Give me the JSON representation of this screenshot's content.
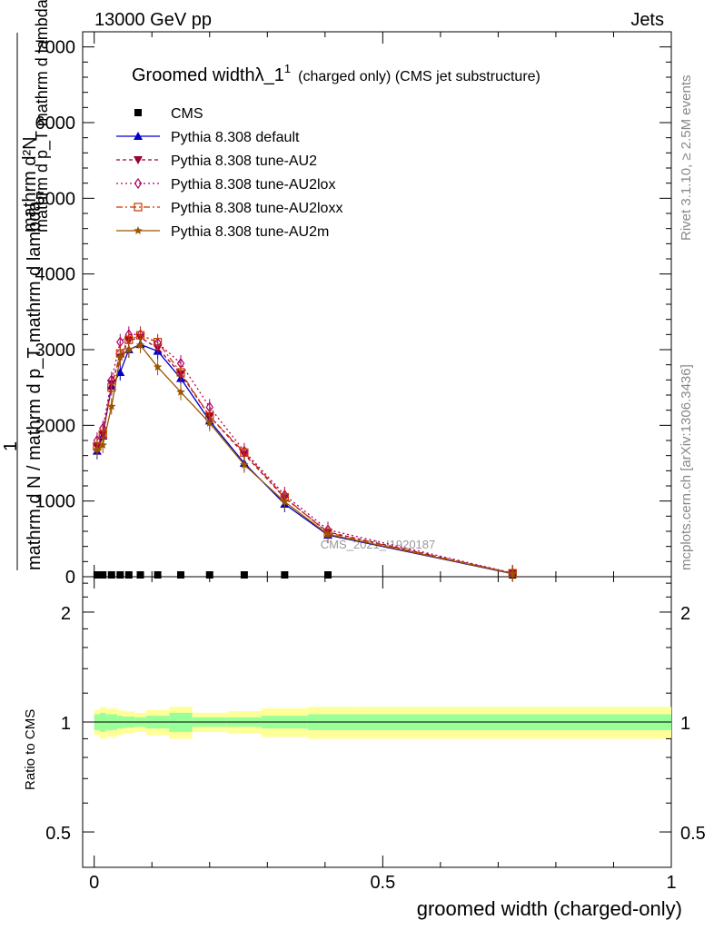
{
  "header": {
    "left": "13000 GeV pp",
    "right": "Jets",
    "side_top": "Rivet 3.1.10, ≥ 2.5M events",
    "side_bottom": "mcplots.cern.ch [arXiv:1306.3436]"
  },
  "title": {
    "main": "Groomed widthλ_1",
    "sup": "1",
    "sub": "(charged only) (CMS jet substructure)"
  },
  "watermark": "CMS_2021_I1920187",
  "axes": {
    "main_ylabel_num": "mathrm d²N",
    "main_ylabel_den": "mathrm d p_T mathrm d lambda",
    "main_ylabel_frac_den": "mathrm d N / mathrm d p_T mathrm d lambda",
    "main_ylabel_one": "1",
    "ratio_ylabel": "Ratio to CMS",
    "xlabel": "groomed width (charged-only)"
  },
  "chart_data": {
    "type": "line",
    "xlim": [
      -0.02,
      1.0
    ],
    "main_ylim": [
      0,
      7200
    ],
    "main_yticks": [
      {
        "v": 0,
        "label": "0"
      },
      {
        "v": 1000,
        "label": "1000"
      },
      {
        "v": 2000,
        "label": "2000"
      },
      {
        "v": 3000,
        "label": "3000"
      },
      {
        "v": 4000,
        "label": "4000"
      },
      {
        "v": 5000,
        "label": "5000"
      },
      {
        "v": 6000,
        "label": "6000"
      },
      {
        "v": 7000,
        "label": "7000"
      }
    ],
    "xticks": [
      {
        "v": 0,
        "label": "0"
      },
      {
        "v": 0.5,
        "label": "0.5"
      },
      {
        "v": 1,
        "label": "1"
      }
    ],
    "ratio_ylim": [
      0.4,
      2.5
    ],
    "ratio_yticks": [
      {
        "v": 0.5,
        "label": "0.5"
      },
      {
        "v": 1,
        "label": "1"
      },
      {
        "v": 2,
        "label": "2"
      }
    ],
    "x": [
      0.005,
      0.015,
      0.03,
      0.045,
      0.06,
      0.08,
      0.11,
      0.15,
      0.2,
      0.26,
      0.33,
      0.405,
      0.725
    ],
    "bin_edges": [
      0.0,
      0.01,
      0.02,
      0.04,
      0.05,
      0.07,
      0.09,
      0.13,
      0.17,
      0.23,
      0.29,
      0.37,
      0.45,
      1.0
    ],
    "cms": [
      0,
      0,
      0,
      0,
      0,
      0,
      0,
      0,
      0,
      0,
      0,
      0,
      0
    ],
    "band_stat": [
      0.05,
      0.06,
      0.05,
      0.04,
      0.035,
      0.03,
      0.04,
      0.06,
      0.03,
      0.03,
      0.04,
      0.05,
      0.05
    ],
    "band_total": [
      0.08,
      0.1,
      0.09,
      0.08,
      0.07,
      0.06,
      0.08,
      0.1,
      0.06,
      0.07,
      0.09,
      0.1,
      0.1
    ],
    "series": [
      {
        "name": "CMS",
        "color": "#000000",
        "marker": "square",
        "dash": "none"
      },
      {
        "name": "Pythia 8.308 default",
        "color": "#0000cc",
        "marker": "triangle-up",
        "dash": "none",
        "values": [
          1660,
          1860,
          2520,
          2700,
          3000,
          3070,
          2980,
          2620,
          2060,
          1500,
          960,
          550,
          40
        ]
      },
      {
        "name": "Pythia 8.308 tune-AU2",
        "color": "#990033",
        "marker": "triangle-down",
        "dash": "4,3",
        "values": [
          1720,
          1880,
          2550,
          2900,
          3120,
          3160,
          3020,
          2680,
          2120,
          1620,
          1040,
          590,
          45
        ]
      },
      {
        "name": "Pythia 8.308 tune-AU2lox",
        "color": "#aa0066",
        "marker": "diamond",
        "dash": "2,3",
        "values": [
          1800,
          1960,
          2600,
          3100,
          3200,
          3200,
          3090,
          2820,
          2240,
          1660,
          1080,
          620,
          48
        ]
      },
      {
        "name": "Pythia 8.308 tune-AU2loxx",
        "color": "#cc3300",
        "marker": "square-open",
        "dash": "7,3,2,3",
        "values": [
          1720,
          1880,
          2500,
          2950,
          3130,
          3190,
          3100,
          2700,
          2120,
          1640,
          1050,
          580,
          46
        ]
      },
      {
        "name": "Pythia 8.308 tune-AU2m",
        "color": "#995500",
        "marker": "star",
        "dash": "none",
        "values": [
          1680,
          1740,
          2250,
          2900,
          3000,
          3060,
          2770,
          2440,
          2030,
          1480,
          990,
          560,
          42
        ]
      }
    ]
  }
}
